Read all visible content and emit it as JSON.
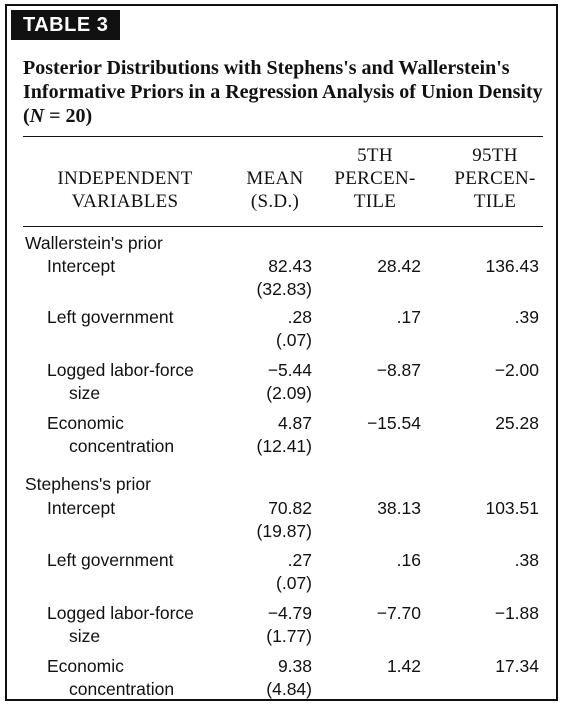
{
  "table_label": "TABLE 3",
  "title": "Posterior Distributions with Stephens's and Wallerstein's Informative Priors in a Regression Analysis of Union Density (N = 20)",
  "title_parts": {
    "before_n": "Posterior Distributions with Stephens's and Wallerstein's Informative Priors in a Regression Analysis of Union Density (",
    "n_symbol": "N",
    "after_n": " = 20)"
  },
  "columns": {
    "variables": {
      "line1": "INDEPENDENT",
      "line2": "VARIABLES"
    },
    "mean": {
      "line1": "MEAN",
      "line2": "(S.D.)"
    },
    "p5": {
      "line1": "5TH",
      "line2": "PERCEN-",
      "line3": "TILE"
    },
    "p95": {
      "line1": "95TH",
      "line2": "PERCEN-",
      "line3": "TILE"
    }
  },
  "groups": [
    {
      "label": "Wallerstein's prior",
      "rows": [
        {
          "var1": "Intercept",
          "var2": "",
          "mean": "82.43",
          "sd": "(32.83)",
          "p5": "28.42",
          "p95": "136.43"
        },
        {
          "var1": "Left government",
          "var2": "",
          "mean": ".28",
          "sd": "(.07)",
          "p5": ".17",
          "p95": ".39"
        },
        {
          "var1": "Logged labor-force",
          "var2": "size",
          "mean": "−5.44",
          "sd": "(2.09)",
          "p5": "−8.87",
          "p95": "−2.00"
        },
        {
          "var1": "Economic",
          "var2": "concentration",
          "mean": "4.87",
          "sd": "(12.41)",
          "p5": "−15.54",
          "p95": "25.28"
        }
      ]
    },
    {
      "label": "Stephens's prior",
      "rows": [
        {
          "var1": "Intercept",
          "var2": "",
          "mean": "70.82",
          "sd": "(19.87)",
          "p5": "38.13",
          "p95": "103.51"
        },
        {
          "var1": "Left government",
          "var2": "",
          "mean": ".27",
          "sd": "(.07)",
          "p5": ".16",
          "p95": ".38"
        },
        {
          "var1": "Logged labor-force",
          "var2": "size",
          "mean": "−4.79",
          "sd": "(1.77)",
          "p5": "−7.70",
          "p95": "−1.88"
        },
        {
          "var1": "Economic",
          "var2": "concentration",
          "mean": "9.38",
          "sd": "(4.84)",
          "p5": "1.42",
          "p95": "17.34"
        }
      ]
    }
  ]
}
